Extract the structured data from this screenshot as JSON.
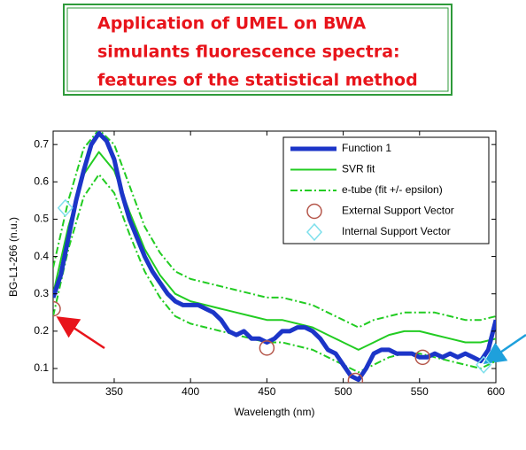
{
  "header": {
    "title_lines": [
      "Application of UMEL on BWA",
      "simulants fluorescence spectra:",
      "features of the statistical method"
    ]
  },
  "chart_data": {
    "type": "line",
    "xlabel": "Wavelength (nm)",
    "ylabel": "BG-L1-266 (n.u.)",
    "xlim": [
      310,
      600
    ],
    "ylim": [
      0.062,
      0.736
    ],
    "xticks": [
      350,
      400,
      450,
      500,
      550,
      600
    ],
    "yticks": [
      0.1,
      0.2,
      0.3,
      0.4,
      0.5,
      0.6,
      0.7
    ],
    "legend": "upper right",
    "series": [
      {
        "name": "Function 1",
        "color": "#1c35c8",
        "line_style": "solid",
        "width": 5,
        "x": [
          310,
          315,
          320,
          325,
          330,
          335,
          340,
          345,
          350,
          355,
          360,
          365,
          370,
          375,
          380,
          385,
          390,
          395,
          400,
          405,
          410,
          415,
          420,
          425,
          430,
          435,
          440,
          445,
          450,
          455,
          460,
          465,
          470,
          475,
          480,
          485,
          490,
          495,
          500,
          505,
          510,
          515,
          520,
          525,
          530,
          535,
          540,
          545,
          550,
          555,
          560,
          565,
          570,
          575,
          580,
          585,
          590,
          595,
          600
        ],
        "values": [
          0.29,
          0.35,
          0.45,
          0.55,
          0.63,
          0.7,
          0.73,
          0.71,
          0.66,
          0.57,
          0.5,
          0.45,
          0.4,
          0.36,
          0.33,
          0.3,
          0.28,
          0.27,
          0.27,
          0.27,
          0.26,
          0.25,
          0.23,
          0.2,
          0.19,
          0.2,
          0.18,
          0.18,
          0.17,
          0.18,
          0.2,
          0.2,
          0.21,
          0.21,
          0.2,
          0.18,
          0.15,
          0.14,
          0.11,
          0.08,
          0.07,
          0.1,
          0.14,
          0.15,
          0.15,
          0.14,
          0.14,
          0.14,
          0.13,
          0.13,
          0.14,
          0.13,
          0.14,
          0.13,
          0.14,
          0.13,
          0.12,
          0.15,
          0.23
        ]
      },
      {
        "name": "SVR fit",
        "color": "#22cc22",
        "line_style": "solid",
        "width": 2,
        "x": [
          310,
          320,
          330,
          340,
          350,
          360,
          370,
          380,
          390,
          400,
          410,
          420,
          430,
          440,
          450,
          460,
          470,
          480,
          490,
          500,
          510,
          520,
          530,
          540,
          550,
          560,
          570,
          580,
          590,
          600
        ],
        "values": [
          0.3,
          0.48,
          0.62,
          0.68,
          0.63,
          0.52,
          0.42,
          0.35,
          0.3,
          0.28,
          0.27,
          0.26,
          0.25,
          0.24,
          0.23,
          0.23,
          0.22,
          0.21,
          0.19,
          0.17,
          0.15,
          0.17,
          0.19,
          0.2,
          0.2,
          0.19,
          0.18,
          0.17,
          0.17,
          0.18
        ]
      },
      {
        "name": "e-tube (fit +/- epsilon)",
        "color": "#22cc22",
        "line_style": "dash-dot",
        "width": 2,
        "x": [
          310,
          320,
          330,
          340,
          350,
          360,
          370,
          380,
          390,
          400,
          410,
          420,
          430,
          440,
          450,
          460,
          470,
          480,
          490,
          500,
          510,
          520,
          530,
          540,
          550,
          560,
          570,
          580,
          590,
          600
        ],
        "values": [
          0.37,
          0.55,
          0.69,
          0.74,
          0.7,
          0.59,
          0.48,
          0.41,
          0.36,
          0.34,
          0.33,
          0.32,
          0.31,
          0.3,
          0.29,
          0.29,
          0.28,
          0.27,
          0.25,
          0.23,
          0.21,
          0.23,
          0.24,
          0.25,
          0.25,
          0.25,
          0.24,
          0.23,
          0.23,
          0.24
        ],
        "values_lower": [
          0.24,
          0.42,
          0.56,
          0.62,
          0.57,
          0.46,
          0.36,
          0.29,
          0.24,
          0.22,
          0.21,
          0.2,
          0.19,
          0.18,
          0.17,
          0.17,
          0.16,
          0.15,
          0.13,
          0.11,
          0.09,
          0.11,
          0.13,
          0.14,
          0.14,
          0.13,
          0.12,
          0.11,
          0.1,
          0.12
        ]
      },
      {
        "name": "External Support Vector",
        "color": "#b5574b",
        "marker": "circle",
        "x": [
          310,
          450,
          508,
          552
        ],
        "values": [
          0.26,
          0.155,
          0.068,
          0.13
        ]
      },
      {
        "name": "Internal Support Vector",
        "color": "#7fe0ec",
        "marker": "diamond",
        "x": [
          318,
          592
        ],
        "values": [
          0.53,
          0.11
        ]
      }
    ]
  }
}
